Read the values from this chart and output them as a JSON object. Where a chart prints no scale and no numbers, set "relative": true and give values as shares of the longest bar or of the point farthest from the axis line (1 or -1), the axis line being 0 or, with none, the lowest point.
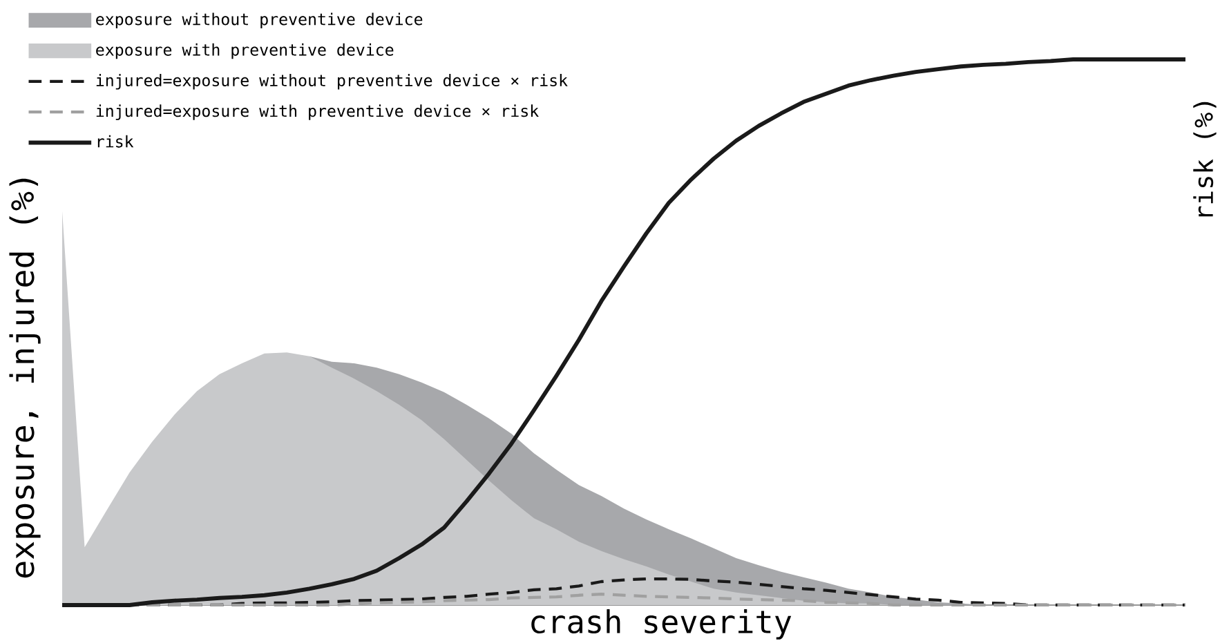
{
  "chart_data": {
    "type": "area",
    "relative": true,
    "xlabel": "crash severity",
    "ylabel": "exposure, injured (%)",
    "y2label": "risk (%)",
    "legend": "top left",
    "categories": [
      null,
      null,
      null,
      null,
      null,
      null,
      null,
      null,
      null,
      null,
      null,
      null,
      null,
      null,
      null,
      null,
      null,
      null,
      null,
      null,
      null,
      null,
      null,
      null,
      null,
      null,
      null,
      null,
      null,
      null,
      null,
      null,
      null,
      null,
      null,
      null,
      null,
      null,
      null,
      null,
      null,
      null,
      null,
      null,
      null,
      null,
      null,
      null,
      null,
      null,
      null
    ],
    "series": [
      {
        "name": "exposure without preventive device",
        "color": "#a7a8ab",
        "values": [
          null,
          null,
          null,
          null,
          null,
          null,
          null,
          null,
          null,
          null,
          null,
          0.456,
          0.446,
          0.443,
          0.435,
          0.423,
          0.408,
          0.39,
          0.367,
          0.342,
          0.314,
          0.278,
          0.248,
          0.22,
          0.2,
          0.177,
          0.157,
          0.139,
          0.122,
          0.104,
          0.086,
          0.073,
          0.061,
          0.051,
          0.041,
          0.03,
          0.023,
          0.015,
          0.01,
          0.005,
          0.003,
          0,
          0,
          0,
          0,
          0,
          0,
          0,
          0,
          0,
          0
        ]
      },
      {
        "name": "exposure with preventive device",
        "color": "#c8c9cb",
        "values": [
          0.722,
          0.106,
          0.175,
          0.243,
          0.299,
          0.349,
          0.392,
          0.423,
          0.443,
          0.461,
          0.463,
          0.456,
          0.435,
          0.415,
          0.392,
          0.367,
          0.339,
          0.304,
          0.266,
          0.228,
          0.192,
          0.159,
          0.139,
          0.116,
          0.099,
          0.084,
          0.071,
          0.056,
          0.043,
          0.03,
          0.023,
          0.018,
          0.013,
          0.008,
          0.005,
          0.003,
          0.003,
          0,
          0,
          0,
          0,
          0,
          0,
          0,
          0,
          0,
          0,
          0,
          0,
          0,
          0
        ]
      },
      {
        "name": "injured=exposure without preventive device × risk",
        "type": "line",
        "line_style": "dashed",
        "color": "#1a1a1a",
        "values": [
          0,
          0,
          0,
          0,
          0,
          0,
          0,
          0,
          0.003,
          0.004,
          0.004,
          0.005,
          0.006,
          0.008,
          0.009,
          0.01,
          0.011,
          0.014,
          0.016,
          0.02,
          0.023,
          0.028,
          0.03,
          0.035,
          0.043,
          0.046,
          0.048,
          0.048,
          0.047,
          0.044,
          0.042,
          0.038,
          0.034,
          0.03,
          0.027,
          0.023,
          0.019,
          0.015,
          0.011,
          0.009,
          0.005,
          0.004,
          0.003,
          0,
          0,
          0,
          0,
          0,
          0,
          0,
          0
        ]
      },
      {
        "name": "injured=exposure with preventive device × risk",
        "type": "line",
        "line_style": "dashed",
        "color": "#a0a0a0",
        "values": [
          0,
          0,
          0,
          0,
          0,
          0,
          0,
          0,
          0,
          0,
          0,
          0,
          0,
          0.002,
          0.004,
          0.005,
          0.006,
          0.008,
          0.009,
          0.01,
          0.013,
          0.014,
          0.015,
          0.018,
          0.02,
          0.018,
          0.016,
          0.015,
          0.014,
          0.013,
          0.011,
          0.01,
          0.009,
          0.008,
          0.005,
          0.004,
          0.003,
          0,
          0,
          0,
          0,
          0,
          0,
          0,
          0,
          0,
          0,
          0,
          0,
          0,
          0
        ]
      },
      {
        "name": "risk",
        "type": "line",
        "line_style": "solid",
        "color": "#1a1a1a",
        "values": [
          0,
          0,
          0,
          0,
          0.005,
          0.008,
          0.01,
          0.013,
          0.015,
          0.018,
          0.023,
          0.03,
          0.038,
          0.048,
          0.063,
          0.086,
          0.111,
          0.142,
          0.19,
          0.241,
          0.296,
          0.357,
          0.42,
          0.486,
          0.557,
          0.62,
          0.681,
          0.737,
          0.78,
          0.818,
          0.851,
          0.878,
          0.901,
          0.922,
          0.937,
          0.952,
          0.962,
          0.97,
          0.977,
          0.982,
          0.987,
          0.99,
          0.992,
          0.995,
          0.997,
          1,
          1,
          1,
          1,
          1,
          1
        ]
      }
    ]
  }
}
